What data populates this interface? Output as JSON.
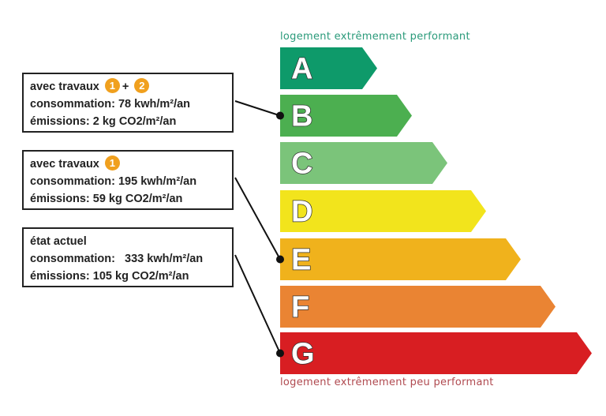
{
  "top_caption": "logement extrêmement performant",
  "bottom_caption": "logement extrêmement peu performant",
  "classes": [
    {
      "letter": "A",
      "color": "#0e9a6a"
    },
    {
      "letter": "B",
      "color": "#4caf50"
    },
    {
      "letter": "C",
      "color": "#7bc47a"
    },
    {
      "letter": "D",
      "color": "#f2e41c"
    },
    {
      "letter": "E",
      "color": "#f0b21c"
    },
    {
      "letter": "F",
      "color": "#ea8433"
    },
    {
      "letter": "G",
      "color": "#d81e22"
    }
  ],
  "caption_colors": {
    "top": "#2a9a7a",
    "bottom": "#b04a50"
  },
  "scenarios": [
    {
      "title": "avec travaux",
      "badges": [
        "1",
        "+",
        "2"
      ],
      "consumption": "consommation: 78 kwh/m²/an",
      "emissions": "émissions: 2 kg CO2/m²/an",
      "class": "B"
    },
    {
      "title": "avec travaux",
      "badges": [
        "1"
      ],
      "consumption": "consommation: 195 kwh/m²/an",
      "emissions": "émissions: 59 kg CO2/m²/an",
      "class": "E"
    },
    {
      "title": "état actuel",
      "badges": [],
      "consumption": "consommation:   333 kwh/m²/an",
      "emissions": "émissions: 105 kg CO2/m²/an",
      "class": "G"
    }
  ]
}
